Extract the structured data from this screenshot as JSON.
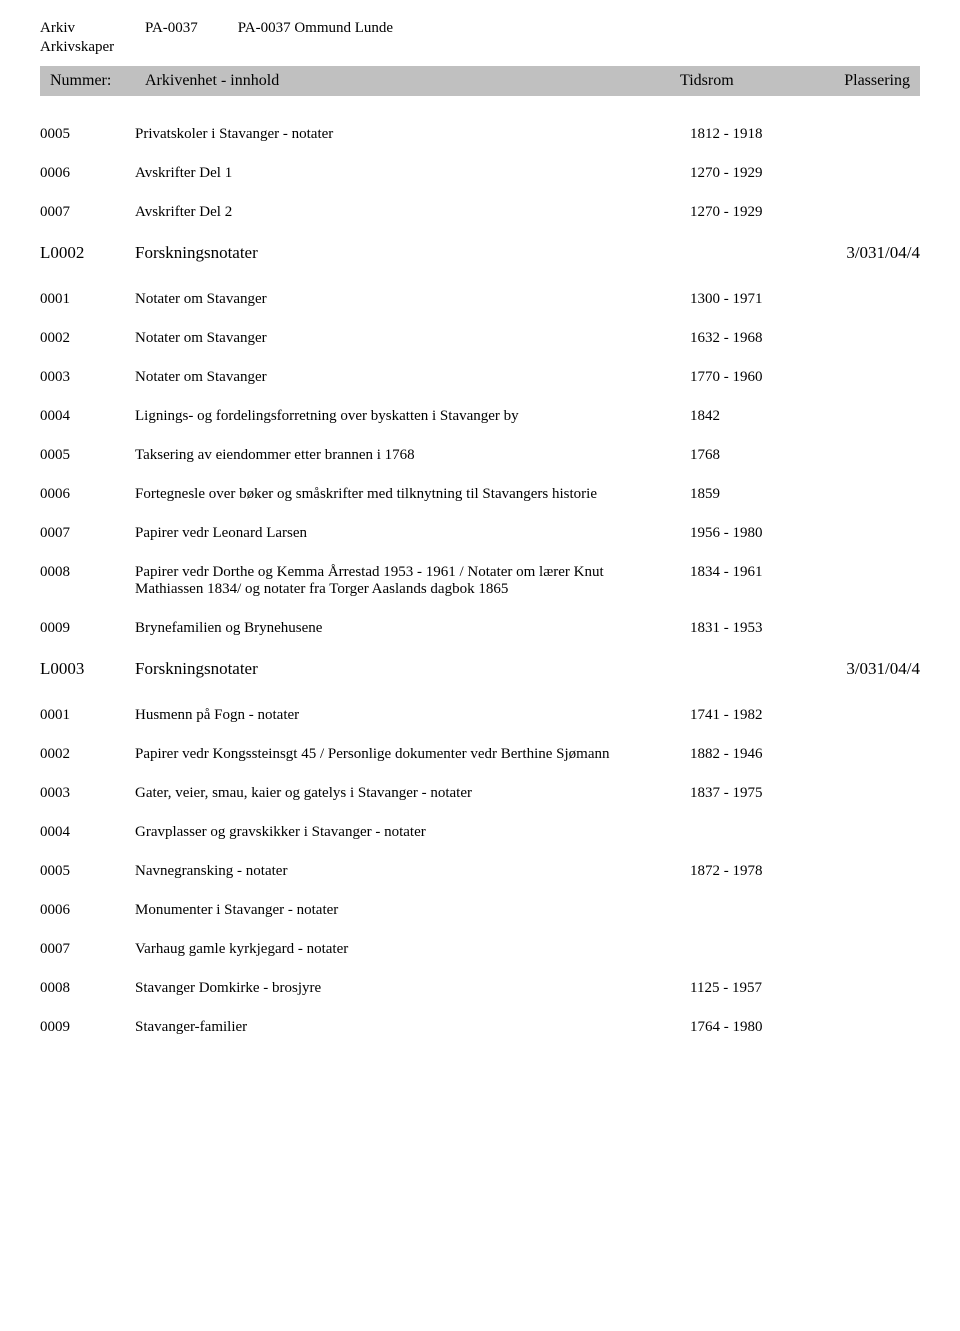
{
  "header": {
    "arkiv_label": "Arkiv",
    "arkiv_ref": "PA-0037",
    "arkiv_title": "PA-0037 Ommund Lunde",
    "skaper_label": "Arkivskaper"
  },
  "table_header": {
    "nummer": "Nummer:",
    "arkivenhet": "Arkivenhet - innhold",
    "tidsrom": "Tidsrom",
    "plassering": "Plassering"
  },
  "rows": [
    {
      "num": "0005",
      "desc": "Privatskoler i Stavanger - notater",
      "time": "1812 - 1918",
      "place": "",
      "section": false
    },
    {
      "num": "0006",
      "desc": "Avskrifter  Del 1",
      "time": "1270 - 1929",
      "place": "",
      "section": false
    },
    {
      "num": "0007",
      "desc": "Avskrifter  Del 2",
      "time": "1270 - 1929",
      "place": "",
      "section": false
    },
    {
      "num": "L0002",
      "desc": "Forskningsnotater",
      "time": "",
      "place": "3/031/04/4",
      "section": true
    },
    {
      "num": "0001",
      "desc": "Notater om Stavanger",
      "time": "1300 - 1971",
      "place": "",
      "section": false
    },
    {
      "num": "0002",
      "desc": "Notater om Stavanger",
      "time": "1632 - 1968",
      "place": "",
      "section": false
    },
    {
      "num": "0003",
      "desc": "Notater om Stavanger",
      "time": "1770 - 1960",
      "place": "",
      "section": false
    },
    {
      "num": "0004",
      "desc": "Lignings- og fordelingsforretning over byskatten i Stavanger by",
      "time": "1842",
      "place": "",
      "section": false
    },
    {
      "num": "0005",
      "desc": "Taksering av eiendommer etter brannen i 1768",
      "time": "1768",
      "place": "",
      "section": false
    },
    {
      "num": "0006",
      "desc": "Fortegnesle over bøker og småskrifter med tilknytning til Stavangers historie",
      "time": "1859",
      "place": "",
      "section": false
    },
    {
      "num": "0007",
      "desc": "Papirer vedr Leonard Larsen",
      "time": "1956 - 1980",
      "place": "",
      "section": false
    },
    {
      "num": "0008",
      "desc": "Papirer vedr Dorthe og Kemma Årrestad 1953 - 1961 / Notater om lærer Knut Mathiassen 1834/ og notater fra Torger Aaslands dagbok 1865",
      "time": "1834 - 1961",
      "place": "",
      "section": false
    },
    {
      "num": "0009",
      "desc": "Brynefamilien og Brynehusene",
      "time": "1831 - 1953",
      "place": "",
      "section": false
    },
    {
      "num": "L0003",
      "desc": "Forskningsnotater",
      "time": "",
      "place": "3/031/04/4",
      "section": true
    },
    {
      "num": "0001",
      "desc": "Husmenn på Fogn - notater",
      "time": "1741 - 1982",
      "place": "",
      "section": false
    },
    {
      "num": "0002",
      "desc": "Papirer vedr Kongssteinsgt 45 / Personlige dokumenter vedr Berthine Sjømann",
      "time": "1882 - 1946",
      "place": "",
      "section": false
    },
    {
      "num": "0003",
      "desc": "Gater, veier, smau, kaier og gatelys i Stavanger - notater",
      "time": "1837 - 1975",
      "place": "",
      "section": false
    },
    {
      "num": "0004",
      "desc": "Gravplasser og gravskikker i Stavanger - notater",
      "time": "",
      "place": "",
      "section": false
    },
    {
      "num": "0005",
      "desc": "Navnegransking - notater",
      "time": "1872 - 1978",
      "place": "",
      "section": false
    },
    {
      "num": "0006",
      "desc": "Monumenter i Stavanger  - notater",
      "time": "",
      "place": "",
      "section": false
    },
    {
      "num": "0007",
      "desc": "Varhaug gamle kyrkjegard - notater",
      "time": "",
      "place": "",
      "section": false
    },
    {
      "num": "0008",
      "desc": "Stavanger Domkirke - brosjyre",
      "time": "1125 - 1957",
      "place": "",
      "section": false
    },
    {
      "num": "0009",
      "desc": "Stavanger-familier",
      "time": "1764 - 1980",
      "place": "",
      "section": false
    }
  ]
}
